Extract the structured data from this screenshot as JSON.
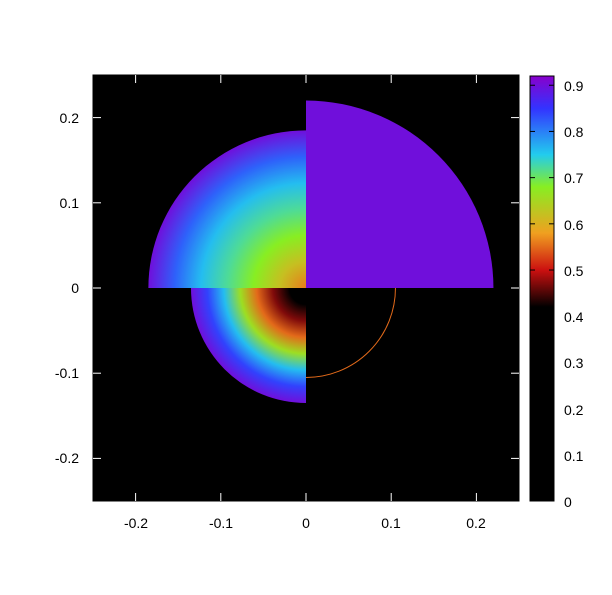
{
  "chart_data": {
    "type": "heatmap",
    "subtype": "polar-sectors",
    "title": "",
    "xlabel": "",
    "ylabel": "",
    "xlim": [
      -0.25,
      0.25
    ],
    "ylim": [
      -0.25,
      0.25
    ],
    "x_ticks": [
      {
        "value": -0.2,
        "label": "-0.2"
      },
      {
        "value": -0.1,
        "label": "-0.1"
      },
      {
        "value": 0.0,
        "label": "0"
      },
      {
        "value": 0.1,
        "label": "0.1"
      },
      {
        "value": 0.2,
        "label": "0.2"
      }
    ],
    "y_ticks": [
      {
        "value": 0.2,
        "label": "0.2"
      },
      {
        "value": 0.1,
        "label": "0.1"
      },
      {
        "value": 0.0,
        "label": "0"
      },
      {
        "value": -0.1,
        "label": "-0.1"
      },
      {
        "value": -0.2,
        "label": "-0.2"
      }
    ],
    "background": "#000000",
    "colorbar": {
      "range": [
        0,
        0.92
      ],
      "ticks": [
        {
          "value": 0.0,
          "label": "0"
        },
        {
          "value": 0.1,
          "label": "0.1"
        },
        {
          "value": 0.2,
          "label": "0.2"
        },
        {
          "value": 0.3,
          "label": "0.3"
        },
        {
          "value": 0.4,
          "label": "0.4"
        },
        {
          "value": 0.5,
          "label": "0.5"
        },
        {
          "value": 0.6,
          "label": "0.6"
        },
        {
          "value": 0.7,
          "label": "0.7"
        },
        {
          "value": 0.8,
          "label": "0.8"
        },
        {
          "value": 0.9,
          "label": "0.9"
        }
      ],
      "stops": [
        {
          "value": 0.0,
          "color": "#000000"
        },
        {
          "value": 0.42,
          "color": "#000000"
        },
        {
          "value": 0.5,
          "color": "#cc1010"
        },
        {
          "value": 0.58,
          "color": "#f0a020"
        },
        {
          "value": 0.68,
          "color": "#88ee22"
        },
        {
          "value": 0.75,
          "color": "#22ccee"
        },
        {
          "value": 0.85,
          "color": "#3333ff"
        },
        {
          "value": 0.92,
          "color": "#8800cc"
        }
      ]
    },
    "sectors": [
      {
        "name": "upper-left",
        "r_outer": 0.185,
        "theta_start": 90,
        "theta_end": 180,
        "values": [
          0.56,
          0.62,
          0.68,
          0.72,
          0.76,
          0.82,
          0.9
        ]
      },
      {
        "name": "upper-right",
        "r_outer": 0.22,
        "theta_start": 0,
        "theta_end": 90,
        "values": [
          0.9
        ]
      },
      {
        "name": "lower-left",
        "r_outer": 0.135,
        "theta_start": 180,
        "theta_end": 270,
        "values": [
          0.35,
          0.4,
          0.47,
          0.55,
          0.66,
          0.76,
          0.84,
          0.9
        ]
      },
      {
        "name": "lower-right",
        "r_outer": 0.105,
        "theta_start": 270,
        "theta_end": 360,
        "values": [
          0.55
        ]
      }
    ]
  }
}
